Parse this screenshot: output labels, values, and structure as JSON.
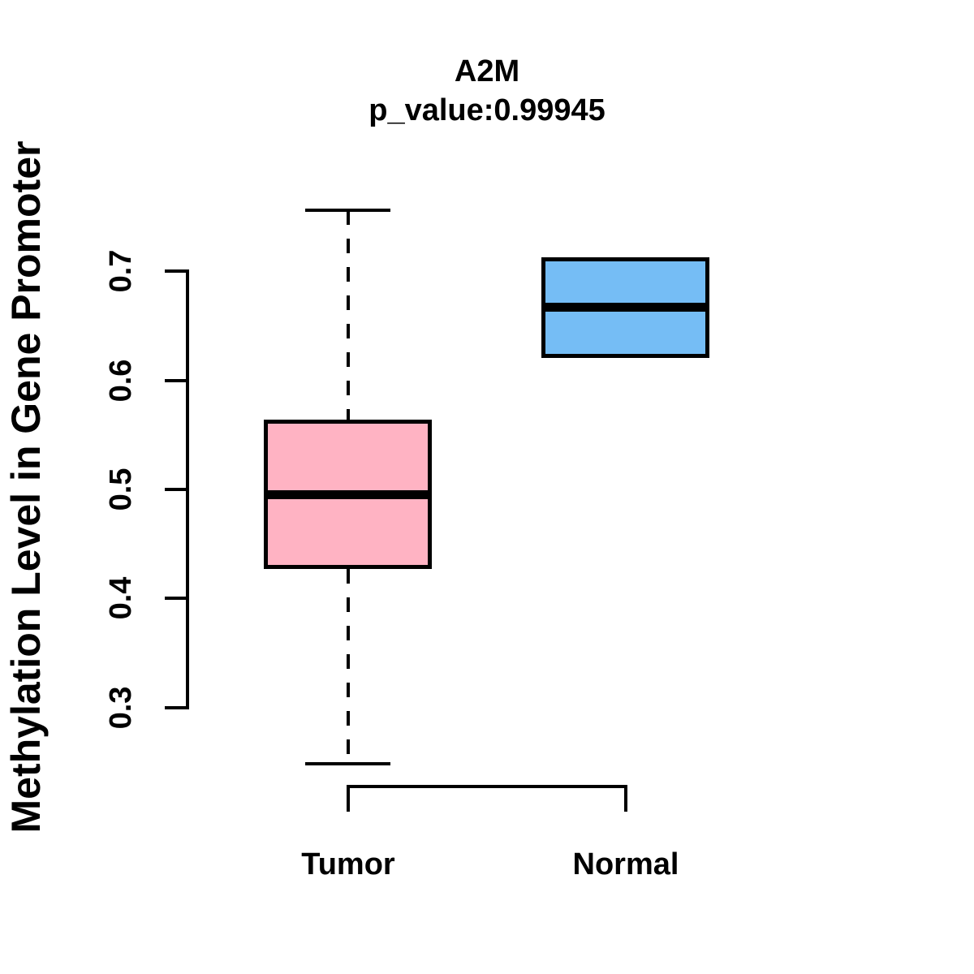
{
  "figure": {
    "title": "A2M",
    "subtitle": "p_value:0.99945"
  },
  "chart_data": {
    "type": "boxplot",
    "title": "A2M",
    "subtitle": "p_value:0.99945",
    "xlabel": "",
    "ylabel": "Methylation Level in Gene Promoter",
    "categories": [
      "Tumor",
      "Normal"
    ],
    "y_ticks": [
      0.3,
      0.4,
      0.5,
      0.6,
      0.7
    ],
    "ylim": [
      0.24,
      0.77
    ],
    "grid": false,
    "legend": "none",
    "axis_color": "#000000",
    "series": [
      {
        "name": "Tumor",
        "fill_color": "#FFB3C3",
        "whisker_low": 0.249,
        "q1": 0.427,
        "median": 0.495,
        "q3": 0.564,
        "whisker_high": 0.756,
        "has_whiskers": true,
        "whisker_style": "dashed"
      },
      {
        "name": "Normal",
        "fill_color": "#75BDF5",
        "whisker_low": null,
        "q1": 0.621,
        "median": 0.667,
        "q3": 0.713,
        "whisker_high": null,
        "has_whiskers": false,
        "whisker_style": "none"
      }
    ]
  }
}
